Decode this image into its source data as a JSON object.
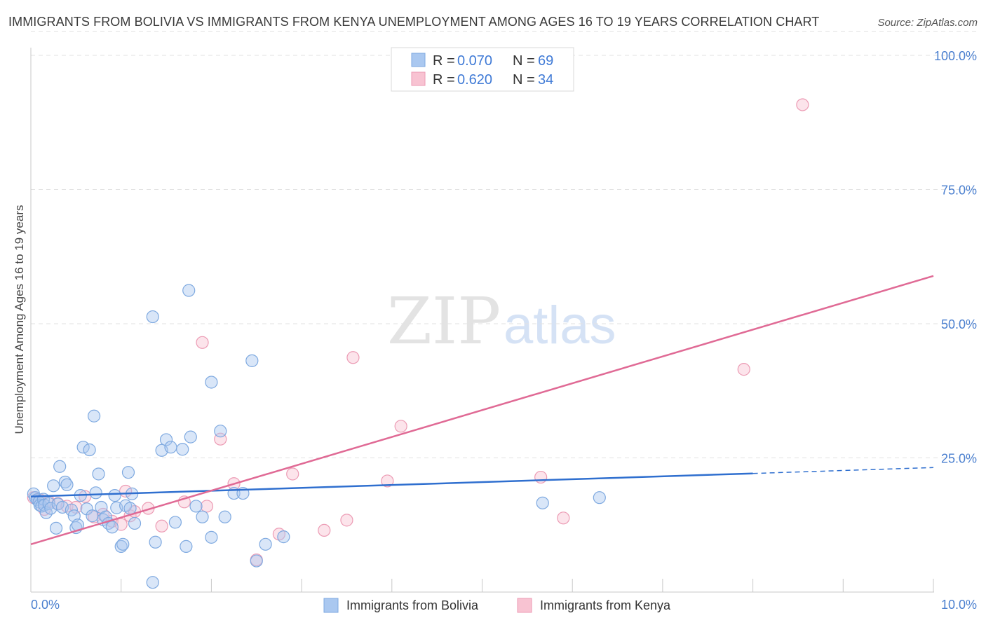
{
  "title": "IMMIGRANTS FROM BOLIVIA VS IMMIGRANTS FROM KENYA UNEMPLOYMENT AMONG AGES 16 TO 19 YEARS CORRELATION CHART",
  "source": "Source: ZipAtlas.com",
  "watermark": {
    "zip": "ZIP",
    "atlas": "atlas"
  },
  "colors": {
    "bolivia_fill": "#aac8f0",
    "bolivia_stroke": "#7ea9e0",
    "bolivia_line": "#2f6fcf",
    "kenya_fill": "#f8c3d2",
    "kenya_stroke": "#ec9bb4",
    "kenya_line": "#e06a95",
    "axis_text": "#4a7fcf",
    "grid": "#e2e2e2"
  },
  "legend": {
    "rows": [
      {
        "r_label": "R = ",
        "r_value": "0.070",
        "n_label": "N = ",
        "n_value": "69"
      },
      {
        "r_label": "R = ",
        "r_value": "0.620",
        "n_label": "N = ",
        "n_value": "34"
      }
    ]
  },
  "bottom_legend": [
    "Immigrants from Bolivia",
    "Immigrants from Kenya"
  ],
  "chart_data": {
    "type": "scatter",
    "title": "IMMIGRANTS FROM BOLIVIA VS IMMIGRANTS FROM KENYA UNEMPLOYMENT AMONG AGES 16 TO 19 YEARS CORRELATION CHART",
    "xlabel": "",
    "ylabel": "Unemployment Among Ages 16 to 19 years",
    "xlim": [
      0,
      10
    ],
    "ylim": [
      0,
      105
    ],
    "x_tick_labels": [
      "0.0%",
      "10.0%"
    ],
    "y_ticks": [
      25,
      50,
      75,
      100
    ],
    "y_tick_labels": [
      "25.0%",
      "50.0%",
      "75.0%",
      "100.0%"
    ],
    "legend_position": "top-center",
    "series": [
      {
        "name": "Immigrants from Bolivia",
        "r": 0.07,
        "n": 69,
        "trend": {
          "x0": 0,
          "y0": 17.8,
          "x1": 8.0,
          "y1": 22.1,
          "dash_to_x": 10,
          "dash_to_y": 23.2
        },
        "points": [
          [
            0.03,
            18.3
          ],
          [
            0.05,
            17.6
          ],
          [
            0.07,
            17.2
          ],
          [
            0.09,
            16.8
          ],
          [
            0.1,
            16.2
          ],
          [
            0.12,
            16.0
          ],
          [
            0.14,
            17.3
          ],
          [
            0.15,
            16.2
          ],
          [
            0.17,
            14.8
          ],
          [
            0.2,
            16.5
          ],
          [
            0.22,
            15.6
          ],
          [
            0.25,
            19.8
          ],
          [
            0.28,
            11.9
          ],
          [
            0.3,
            16.4
          ],
          [
            0.32,
            23.4
          ],
          [
            0.35,
            15.8
          ],
          [
            0.38,
            20.5
          ],
          [
            0.4,
            20.0
          ],
          [
            0.45,
            15.3
          ],
          [
            0.48,
            14.2
          ],
          [
            0.5,
            12.0
          ],
          [
            0.52,
            12.5
          ],
          [
            0.55,
            18.0
          ],
          [
            0.58,
            27.0
          ],
          [
            0.62,
            15.5
          ],
          [
            0.65,
            26.5
          ],
          [
            0.68,
            14.2
          ],
          [
            0.7,
            32.8
          ],
          [
            0.72,
            18.5
          ],
          [
            0.75,
            22.0
          ],
          [
            0.78,
            15.8
          ],
          [
            0.8,
            13.5
          ],
          [
            0.83,
            14.0
          ],
          [
            0.86,
            12.8
          ],
          [
            0.9,
            12.1
          ],
          [
            0.93,
            18.0
          ],
          [
            0.95,
            15.7
          ],
          [
            1.0,
            8.5
          ],
          [
            1.02,
            8.9
          ],
          [
            1.05,
            16.1
          ],
          [
            1.08,
            22.3
          ],
          [
            1.1,
            15.6
          ],
          [
            1.12,
            18.3
          ],
          [
            1.15,
            12.8
          ],
          [
            1.35,
            1.8
          ],
          [
            1.38,
            9.3
          ],
          [
            1.45,
            26.4
          ],
          [
            1.5,
            28.4
          ],
          [
            1.55,
            27.0
          ],
          [
            1.6,
            13.0
          ],
          [
            1.68,
            26.6
          ],
          [
            1.72,
            8.5
          ],
          [
            1.75,
            56.2
          ],
          [
            1.77,
            28.9
          ],
          [
            1.83,
            16.0
          ],
          [
            1.9,
            14.0
          ],
          [
            2.0,
            10.2
          ],
          [
            2.1,
            30.0
          ],
          [
            2.15,
            14.0
          ],
          [
            2.25,
            18.4
          ],
          [
            2.35,
            18.4
          ],
          [
            2.45,
            43.1
          ],
          [
            2.5,
            5.8
          ],
          [
            2.6,
            8.9
          ],
          [
            2.8,
            10.3
          ],
          [
            5.67,
            16.6
          ],
          [
            6.3,
            17.6
          ],
          [
            1.35,
            51.3
          ],
          [
            2.0,
            39.1
          ]
        ]
      },
      {
        "name": "Immigrants from Kenya",
        "r": 0.62,
        "n": 34,
        "trend": {
          "x0": 0,
          "y0": 8.9,
          "x1": 10,
          "y1": 58.9
        },
        "points": [
          [
            0.03,
            17.6
          ],
          [
            0.1,
            17.2
          ],
          [
            0.15,
            15.4
          ],
          [
            0.2,
            16.8
          ],
          [
            0.3,
            16.5
          ],
          [
            0.4,
            16.0
          ],
          [
            0.5,
            15.8
          ],
          [
            0.6,
            17.8
          ],
          [
            0.7,
            14.0
          ],
          [
            0.8,
            14.5
          ],
          [
            0.9,
            13.2
          ],
          [
            1.0,
            12.6
          ],
          [
            1.05,
            18.8
          ],
          [
            1.1,
            14.2
          ],
          [
            1.15,
            15.0
          ],
          [
            1.3,
            15.6
          ],
          [
            1.45,
            12.3
          ],
          [
            1.7,
            16.8
          ],
          [
            1.9,
            46.5
          ],
          [
            1.95,
            16.0
          ],
          [
            2.1,
            28.5
          ],
          [
            2.25,
            20.2
          ],
          [
            2.5,
            6.0
          ],
          [
            2.75,
            10.8
          ],
          [
            2.9,
            22.0
          ],
          [
            3.25,
            11.5
          ],
          [
            3.5,
            13.4
          ],
          [
            3.57,
            43.7
          ],
          [
            3.95,
            20.7
          ],
          [
            4.1,
            30.9
          ],
          [
            5.65,
            21.4
          ],
          [
            5.9,
            13.8
          ],
          [
            7.9,
            41.5
          ],
          [
            8.55,
            90.8
          ]
        ]
      }
    ]
  }
}
